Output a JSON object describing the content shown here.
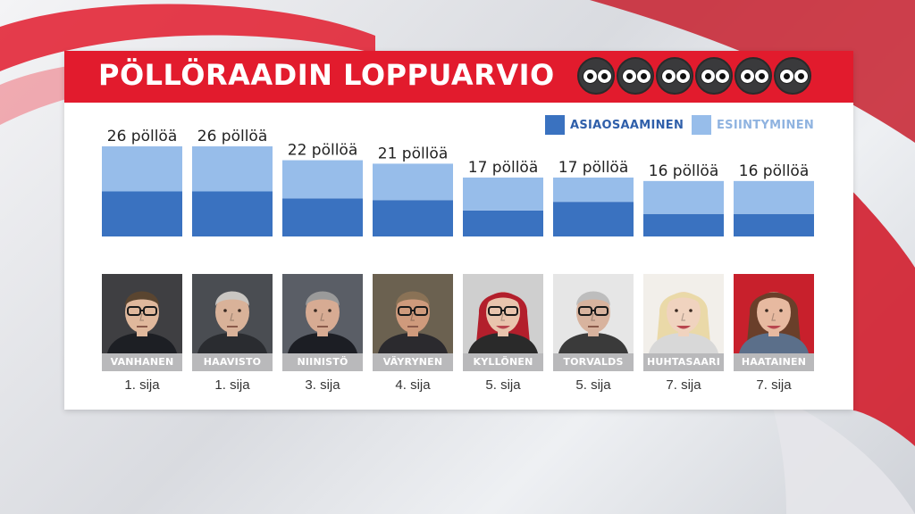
{
  "header": {
    "title": "PÖLLÖRAADIN LOPPUARVIO",
    "owl_count": 6
  },
  "colors": {
    "header_red": "#e21b2d",
    "asiaosaaminen": "#3a72c0",
    "esiintyminen": "#97bdea",
    "name_bar": "#b9b9bb"
  },
  "legend": [
    {
      "label": "ASIAOSAAMINEN",
      "color": "#3a72c0",
      "text_color": "#2f5faa"
    },
    {
      "label": "ESIINTYMINEN",
      "color": "#97bdea",
      "text_color": "#8fb3e0"
    }
  ],
  "chart_data": {
    "type": "bar",
    "stacked": true,
    "categories": [
      "VANHANEN",
      "HAAVISTO",
      "NIINISTÖ",
      "VÄYRYNEN",
      "KYLLÖNEN",
      "TORVALDS",
      "HUHTASAARI",
      "HAATAINEN"
    ],
    "series": [
      {
        "name": "ASIAOSAAMINEN",
        "values": [
          13,
          13,
          11,
          10.5,
          7.5,
          10,
          6.5,
          6.5
        ]
      },
      {
        "name": "ESIINTYMINEN",
        "values": [
          13,
          13,
          11,
          10.5,
          9.5,
          7,
          9.5,
          9.5
        ]
      }
    ],
    "totals": [
      26,
      26,
      22,
      21,
      17,
      17,
      16,
      16
    ],
    "value_labels": [
      "26 pöllöä",
      "26 pöllöä",
      "22 pöllöä",
      "21 pöllöä",
      "17 pöllöä",
      "17 pöllöä",
      "16 pöllöä",
      "16 pöllöä"
    ],
    "ranks": [
      "1. sija",
      "1. sija",
      "3. sija",
      "4. sija",
      "5. sija",
      "5. sija",
      "7. sija",
      "7. sija"
    ],
    "ylim": [
      0,
      26
    ],
    "grid": false,
    "legend_position": "top-right"
  },
  "candidates": [
    {
      "name": "VANHANEN",
      "rank": "1. sija",
      "skin": "#e0b89c",
      "hair": "#5a4530",
      "bg": "#3f3f42",
      "suit": "#1d1f24",
      "glasses": true,
      "female": false
    },
    {
      "name": "HAAVISTO",
      "rank": "1. sija",
      "skin": "#d9b299",
      "hair": "#c9c6c2",
      "bg": "#4a4d52",
      "suit": "#2a2c30",
      "glasses": false,
      "female": false
    },
    {
      "name": "NIINISTÖ",
      "rank": "3. sija",
      "skin": "#d7ab93",
      "hair": "#9a9a9a",
      "bg": "#5a5e66",
      "suit": "#1c1e24",
      "glasses": false,
      "female": false
    },
    {
      "name": "VÄYRYNEN",
      "rank": "4. sija",
      "skin": "#cf9a7c",
      "hair": "#8a7256",
      "bg": "#6b6150",
      "suit": "#2b2a2e",
      "glasses": true,
      "female": false
    },
    {
      "name": "KYLLÖNEN",
      "rank": "5. sija",
      "skin": "#e9c4ad",
      "hair": "#b31f2c",
      "bg": "#cfcfcf",
      "suit": "#2a2a2a",
      "glasses": true,
      "female": true
    },
    {
      "name": "TORVALDS",
      "rank": "5. sija",
      "skin": "#d8b39e",
      "hair": "#bdbdbd",
      "bg": "#e6e6e6",
      "suit": "#3a3a3a",
      "glasses": true,
      "female": false
    },
    {
      "name": "HUHTASAARI",
      "rank": "7. sija",
      "skin": "#f0d3bf",
      "hair": "#ead9a8",
      "bg": "#f2efea",
      "suit": "#d8d8d8",
      "glasses": false,
      "female": true
    },
    {
      "name": "HAATAINEN",
      "rank": "7. sija",
      "skin": "#e7b9a0",
      "hair": "#6a3f2a",
      "bg": "#c8202c",
      "suit": "#5b6f8a",
      "glasses": false,
      "female": true
    }
  ]
}
